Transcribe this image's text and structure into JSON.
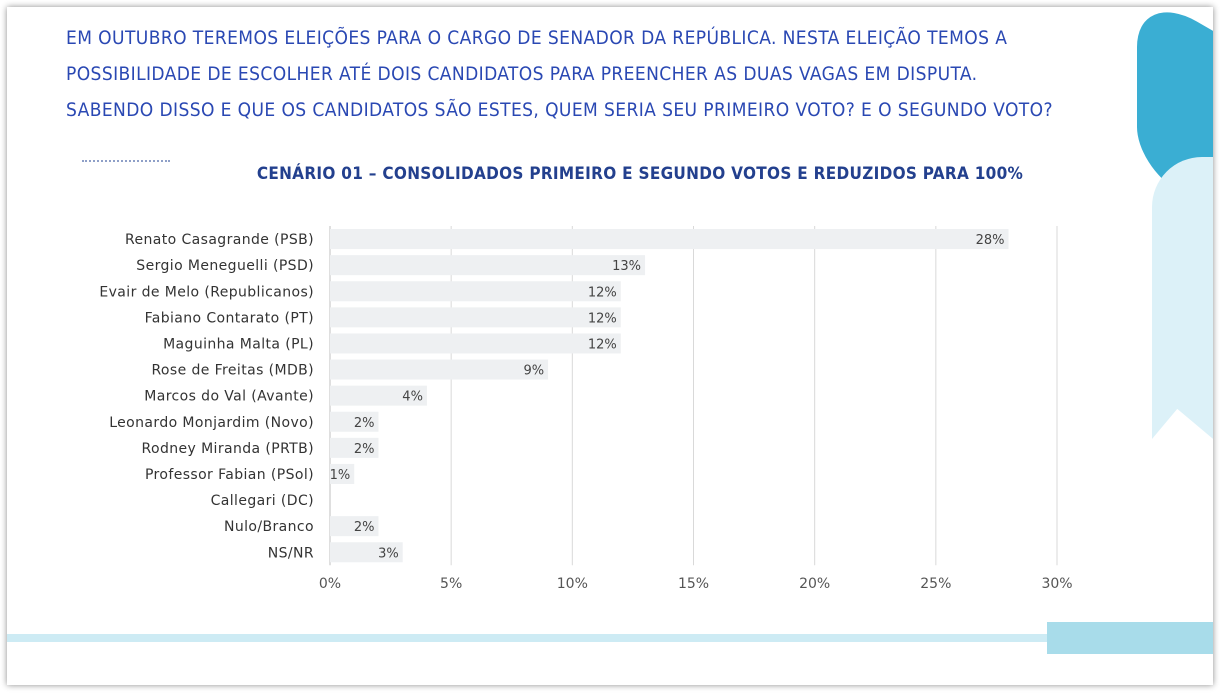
{
  "question_lines": [
    "EM OUTUBRO TEREMOS ELEIÇÕES PARA O CARGO DE SENADOR DA REPÚBLICA. NESTA ELEIÇÃO TEMOS A",
    "POSSIBILIDADE DE ESCOLHER ATÉ DOIS CANDIDATOS PARA PREENCHER AS DUAS VAGAS EM DISPUTA.",
    "SABENDO DISSO E QUE OS CANDIDATOS SÃO ESTES, QUEM SERIA SEU PRIMEIRO VOTO? E O SEGUNDO VOTO?"
  ],
  "colors": {
    "accent": "#3aaed3",
    "text_blue": "#2a48b3",
    "bar": "#eef0f2",
    "grid": "#d9d9d9"
  },
  "chart_data": {
    "type": "bar",
    "orientation": "horizontal",
    "title": "CENÁRIO 01 – CONSOLIDADOS PRIMEIRO E SEGUNDO VOTOS E REDUZIDOS PARA 100%",
    "categories": [
      "Renato Casagrande (PSB)",
      "Sergio Meneguelli (PSD)",
      "Evair de Melo (Republicanos)",
      "Fabiano Contarato (PT)",
      "Maguinha Malta (PL)",
      "Rose de Freitas (MDB)",
      "Marcos do Val (Avante)",
      "Leonardo Monjardim (Novo)",
      "Rodney Miranda (PRTB)",
      "Professor Fabian (PSol)",
      "Callegari (DC)",
      "Nulo/Branco",
      "NS/NR"
    ],
    "values": [
      28,
      13,
      12,
      12,
      12,
      9,
      4,
      2,
      2,
      1,
      0,
      2,
      3
    ],
    "value_labels": [
      "28%",
      "13%",
      "12%",
      "12%",
      "12%",
      "9%",
      "4%",
      "2%",
      "2%",
      "1%",
      "",
      "2%",
      "3%"
    ],
    "xlim": [
      0,
      30
    ],
    "xticks": [
      0,
      5,
      10,
      15,
      20,
      25,
      30
    ],
    "xtick_labels": [
      "0%",
      "5%",
      "10%",
      "15%",
      "20%",
      "25%",
      "30%"
    ],
    "grid": true,
    "legend": "none"
  }
}
